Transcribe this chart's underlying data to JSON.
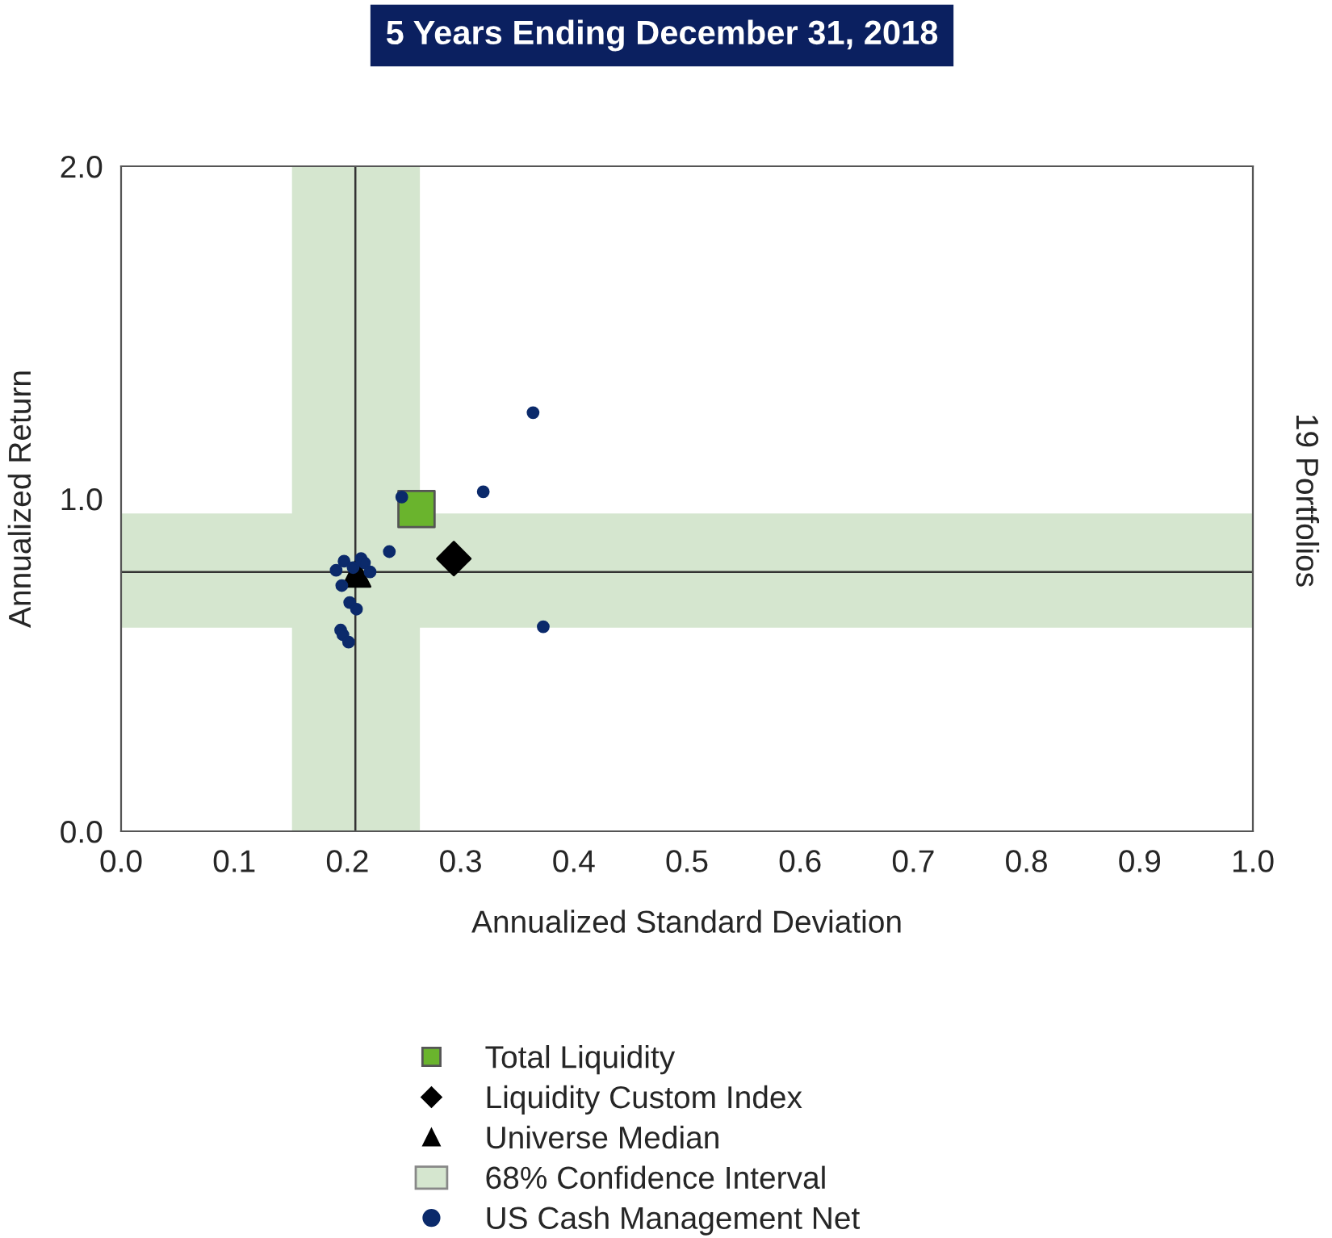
{
  "chart_data": {
    "type": "scatter",
    "title": "5 Years Ending December 31, 2018",
    "xlabel": "Annualized Standard Deviation",
    "ylabel": "Annualized Return",
    "annotations": [
      "19 Portfolios"
    ],
    "xlim": [
      0.0,
      1.0
    ],
    "xticks": [
      {
        "value": 0,
        "label": "0.0"
      },
      0.1,
      0.2,
      0.3,
      0.4,
      0.5,
      0.6,
      0.7,
      0.8,
      0.9,
      {
        "value": 1,
        "label": "1.0"
      }
    ],
    "ylim": [
      0.0,
      2.0
    ],
    "yticks": [
      {
        "value": 0,
        "label": "0.0"
      },
      {
        "value": 1,
        "label": "1.0"
      },
      {
        "value": 2,
        "label": "2.0"
      }
    ],
    "grid": false,
    "legend": "bottom",
    "bands": [
      {
        "axis": "x",
        "from": 0.151,
        "to": 0.264,
        "label": "68% Confidence Interval",
        "color": "#d5e6cf"
      },
      {
        "axis": "y",
        "from": 0.612,
        "to": 0.956,
        "color": "#d5e6cf"
      }
    ],
    "ref_lines": [
      {
        "axis": "x",
        "value": 0.207,
        "color": "#333333"
      },
      {
        "axis": "y",
        "value": 0.78,
        "color": "#333333"
      }
    ],
    "series": [
      {
        "name": "Total Liquidity",
        "color": "#6ab42d",
        "marker": "square",
        "x": [
          0.261
        ],
        "values": [
          0.969
        ]
      },
      {
        "name": "Liquidity Custom Index",
        "color": "#000000",
        "marker": "diamond",
        "x": [
          0.294
        ],
        "values": [
          0.82
        ]
      },
      {
        "name": "Universe Median",
        "color": "#000000",
        "marker": "triangle",
        "x": [
          0.208
        ],
        "values": [
          0.777
        ]
      },
      {
        "name": "US Cash Management Net",
        "color": "#0b2a6b",
        "marker": "circle",
        "x": [
          0.364,
          0.32,
          0.248,
          0.237,
          0.197,
          0.19,
          0.212,
          0.215,
          0.22,
          0.205,
          0.195,
          0.202,
          0.208,
          0.194,
          0.196,
          0.201,
          0.373
        ],
        "values": [
          1.259,
          1.021,
          1.005,
          0.841,
          0.812,
          0.785,
          0.82,
          0.807,
          0.78,
          0.793,
          0.739,
          0.688,
          0.668,
          0.605,
          0.591,
          0.569,
          0.615
        ]
      }
    ]
  }
}
